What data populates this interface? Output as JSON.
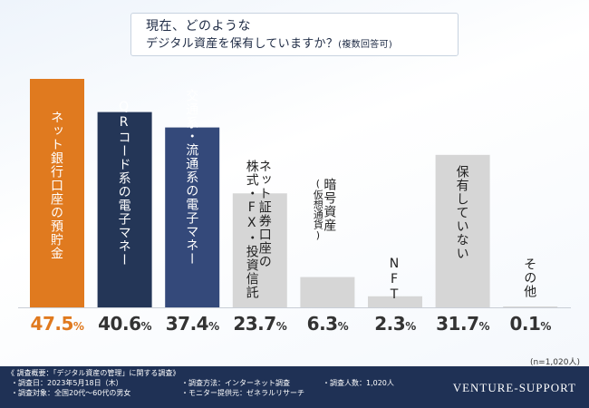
{
  "title": {
    "line1": "現在、どのような",
    "line2_main": "デジタル資産を保有していますか？",
    "line2_sub": "(複数回答可)"
  },
  "colors": {
    "highlight": "#e07a1f",
    "navy_dark": "#243657",
    "navy_mid": "#34497a",
    "navy_light": "#5268a0",
    "gray_bar": "#d6d6d6",
    "footer_bg": "#1f3155"
  },
  "chart_data": {
    "type": "bar",
    "categories": [
      "ネット銀行口座の預貯金",
      "QRコード系の電子マネー",
      "交通系・流通系の電子マネー",
      "株式・FX・投資信託",
      "暗号資産(仮想通貨)",
      "NFT",
      "保有していない",
      "その他"
    ],
    "category_lines": [
      [
        "ネット銀行口座の預貯金"
      ],
      [
        "QRコード系の電子マネー"
      ],
      [
        "交通系・流通系の電子マネー"
      ],
      [
        "ネット証券口座の",
        "株式・FX・投資信託"
      ],
      [
        "暗号資産",
        "(仮想通貨)"
      ],
      [
        "NFT"
      ],
      [
        "保有していない"
      ],
      [
        "その他"
      ]
    ],
    "values": [
      47.5,
      40.6,
      37.4,
      23.7,
      6.3,
      2.3,
      31.7,
      0.1
    ],
    "value_labels": [
      "47.5",
      "40.6",
      "37.4",
      "23.7",
      "6.3",
      "2.3",
      "31.7",
      "0.1"
    ],
    "unit": "%",
    "ylim": [
      0,
      50
    ],
    "bar_colors": [
      "#e07a1f",
      "#243657",
      "#34497a",
      "#d6d6d6",
      "#d6d6d6",
      "#d6d6d6",
      "#d6d6d6",
      "#d6d6d6"
    ],
    "label_light": [
      true,
      true,
      true,
      false,
      false,
      false,
      false,
      false
    ],
    "grid": false,
    "legend": "none"
  },
  "note": "(n=1,020人)",
  "footer": {
    "survey_title": "《 調査概要：「デジタル資産の管理」に関する調査》",
    "date": "・調査日：2023年5月18日（木）",
    "method": "・調査方法：インターネット調査",
    "sample": "・調査人数：1,020人",
    "target": "・調査対象：全国20代～60代の男女",
    "provider": "・モニター提供元：ゼネラルリサーチ",
    "brand": "VENTURE-SUPPORT"
  }
}
